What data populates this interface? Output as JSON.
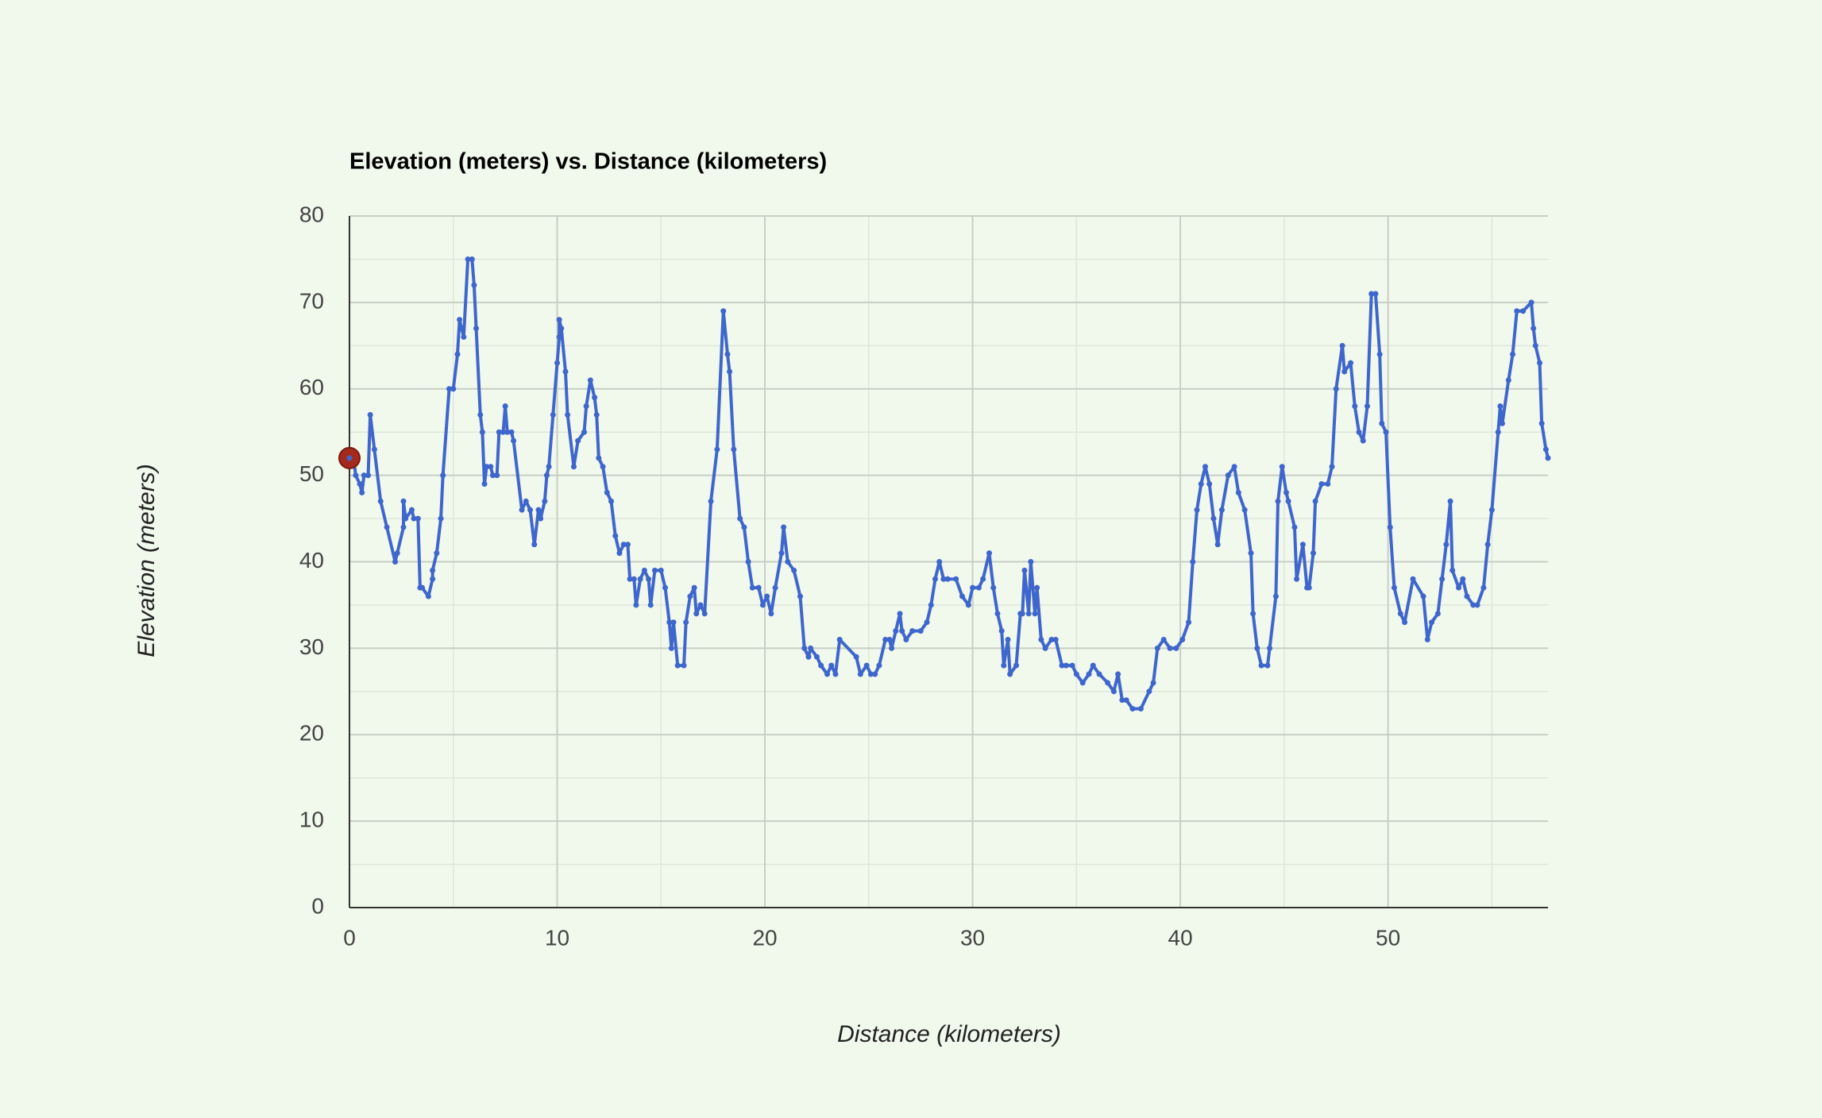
{
  "chart_data": {
    "type": "line",
    "title": "Elevation (meters) vs. Distance (kilometers)",
    "x_label": "Distance (kilometers)",
    "y_label": "Elevation (meters)",
    "color": "#3e66cc",
    "highlight_color": "#a52a1e",
    "grid": true,
    "xlim": [
      0,
      57.7
    ],
    "xticks": [
      0,
      10,
      20,
      30,
      40,
      50
    ],
    "ylim": [
      0,
      80
    ],
    "yticks": [
      0,
      10,
      20,
      30,
      40,
      50,
      60,
      70,
      80
    ],
    "x": [
      0,
      0.2,
      0.3,
      0.5,
      0.6,
      0.7,
      0.9,
      1.0,
      1.2,
      1.5,
      1.8,
      2.2,
      2.3,
      2.6,
      2.6,
      2.7,
      3.0,
      3.1,
      3.3,
      3.4,
      3.5,
      3.8,
      4.0,
      4.0,
      4.2,
      4.4,
      4.5,
      4.8,
      5.0,
      5.2,
      5.3,
      5.5,
      5.7,
      5.9,
      6.0,
      6.1,
      6.3,
      6.4,
      6.5,
      6.6,
      6.8,
      6.9,
      7.1,
      7.2,
      7.4,
      7.5,
      7.6,
      7.8,
      7.9,
      8.3,
      8.5,
      8.7,
      8.9,
      9.1,
      9.2,
      9.4,
      9.5,
      9.6,
      9.8,
      10.0,
      10.1,
      10.1,
      10.2,
      10.4,
      10.5,
      10.8,
      11.0,
      11.3,
      11.4,
      11.6,
      11.8,
      11.9,
      12.0,
      12.2,
      12.4,
      12.6,
      12.8,
      13.0,
      13.2,
      13.4,
      13.5,
      13.7,
      13.8,
      14.0,
      14.2,
      14.4,
      14.5,
      14.7,
      15.0,
      15.2,
      15.4,
      15.5,
      15.6,
      15.8,
      16.1,
      16.2,
      16.4,
      16.6,
      16.7,
      16.9,
      17.1,
      17.4,
      17.7,
      18.0,
      18.2,
      18.3,
      18.5,
      18.8,
      19.0,
      19.2,
      19.4,
      19.7,
      19.9,
      20.1,
      20.3,
      20.5,
      20.8,
      20.9,
      21.1,
      21.4,
      21.7,
      21.9,
      22.1,
      22.2,
      22.5,
      22.7,
      23.0,
      23.2,
      23.4,
      23.6,
      24.4,
      24.6,
      24.9,
      25.1,
      25.3,
      25.5,
      25.8,
      26.0,
      26.1,
      26.3,
      26.5,
      26.6,
      26.8,
      27.1,
      27.5,
      27.8,
      28.0,
      28.2,
      28.4,
      28.6,
      28.8,
      29.2,
      29.5,
      29.8,
      30.0,
      30.3,
      30.5,
      30.8,
      31.0,
      31.2,
      31.4,
      31.5,
      31.7,
      31.8,
      32.1,
      32.3,
      32.4,
      32.5,
      32.7,
      32.8,
      33.0,
      33.1,
      33.3,
      33.5,
      33.8,
      34.0,
      34.3,
      34.5,
      34.8,
      35.0,
      35.3,
      35.6,
      35.8,
      36.1,
      36.5,
      36.8,
      37.0,
      37.2,
      37.4,
      37.7,
      38.1,
      38.5,
      38.7,
      38.9,
      39.2,
      39.5,
      39.8,
      40.1,
      40.4,
      40.6,
      40.8,
      41.0,
      41.2,
      41.4,
      41.6,
      41.8,
      42.0,
      42.3,
      42.6,
      42.8,
      43.1,
      43.4,
      43.5,
      43.7,
      43.9,
      44.2,
      44.3,
      44.6,
      44.7,
      44.9,
      45.1,
      45.2,
      45.5,
      45.6,
      45.9,
      46.1,
      46.2,
      46.4,
      46.5,
      46.8,
      47.1,
      47.3,
      47.5,
      47.8,
      47.9,
      48.2,
      48.4,
      48.6,
      48.8,
      49.0,
      49.2,
      49.4,
      49.6,
      49.7,
      49.9,
      50.1,
      50.3,
      50.6,
      50.8,
      51.2,
      51.7,
      51.9,
      52.1,
      52.4,
      52.6,
      52.8,
      53.0,
      53.1,
      53.4,
      53.6,
      53.8,
      54.1,
      54.3,
      54.6,
      54.8,
      55.0,
      55.3,
      55.4,
      55.5,
      55.8,
      56.0,
      56.2,
      56.5,
      56.9,
      57.0,
      57.1,
      57.3,
      57.4,
      57.6,
      57.7
    ],
    "values": [
      52,
      52,
      50,
      49,
      48,
      50,
      50,
      57,
      53,
      47,
      44,
      40,
      41,
      44,
      47,
      45,
      46,
      45,
      45,
      37,
      37,
      36,
      38,
      39,
      41,
      45,
      50,
      60,
      60,
      64,
      68,
      66,
      75,
      75,
      72,
      67,
      57,
      55,
      49,
      51,
      51,
      50,
      50,
      55,
      55,
      58,
      55,
      55,
      54,
      46,
      47,
      46,
      42,
      46,
      45,
      47,
      50,
      51,
      57,
      63,
      66,
      68,
      67,
      62,
      57,
      51,
      54,
      55,
      58,
      61,
      59,
      57,
      52,
      51,
      48,
      47,
      43,
      41,
      42,
      42,
      38,
      38,
      35,
      38,
      39,
      38,
      35,
      39,
      39,
      37,
      33,
      30,
      33,
      28,
      28,
      33,
      36,
      37,
      34,
      35,
      34,
      47,
      53,
      69,
      64,
      62,
      53,
      45,
      44,
      40,
      37,
      37,
      35,
      36,
      34,
      37,
      41,
      44,
      40,
      39,
      36,
      30,
      29,
      30,
      29,
      28,
      27,
      28,
      27,
      31,
      29,
      27,
      28,
      27,
      27,
      28,
      31,
      31,
      30,
      32,
      34,
      32,
      31,
      32,
      32,
      33,
      35,
      38,
      40,
      38,
      38,
      38,
      36,
      35,
      37,
      37,
      38,
      41,
      37,
      34,
      32,
      28,
      31,
      27,
      28,
      34,
      34,
      39,
      34,
      40,
      34,
      37,
      31,
      30,
      31,
      31,
      28,
      28,
      28,
      27,
      26,
      27,
      28,
      27,
      26,
      25,
      27,
      24,
      24,
      23,
      23,
      25,
      26,
      30,
      31,
      30,
      30,
      31,
      33,
      40,
      46,
      49,
      51,
      49,
      45,
      42,
      46,
      50,
      51,
      48,
      46,
      41,
      34,
      30,
      28,
      28,
      30,
      36,
      47,
      51,
      48,
      47,
      44,
      38,
      42,
      37,
      37,
      41,
      47,
      49,
      49,
      51,
      60,
      65,
      62,
      63,
      58,
      55,
      54,
      58,
      71,
      71,
      64,
      56,
      55,
      44,
      37,
      34,
      33,
      38,
      36,
      31,
      33,
      34,
      38,
      42,
      47,
      39,
      37,
      38,
      36,
      35,
      35,
      37,
      42,
      46,
      55,
      58,
      56,
      61,
      64,
      69,
      69,
      70,
      67,
      65,
      63,
      56,
      53,
      52
    ]
  }
}
